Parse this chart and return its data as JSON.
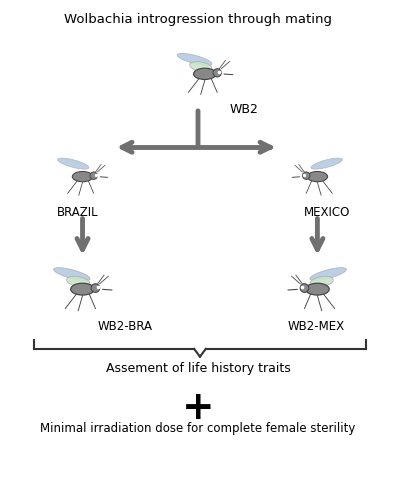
{
  "title": "Wolbachia introgression through mating",
  "bg_color": "#ffffff",
  "arrow_color": "#707070",
  "text_color": "#000000",
  "mosquito_body_color": "#888888",
  "mosquito_wing_color": "#c8e6c9",
  "mosquito_wing_outline": "#aaaaaa",
  "mosquito_blue_wing_color": "#b0c8e0",
  "labels": {
    "wb2": "WB2",
    "brazil": "BRAZIL",
    "mexico": "MEXICO",
    "wb2bra": "WB2-BRA",
    "wb2mex": "WB2-MEX",
    "assement": "Assement of life history traits",
    "minimal": "Minimal irradiation dose for complete female sterility"
  }
}
